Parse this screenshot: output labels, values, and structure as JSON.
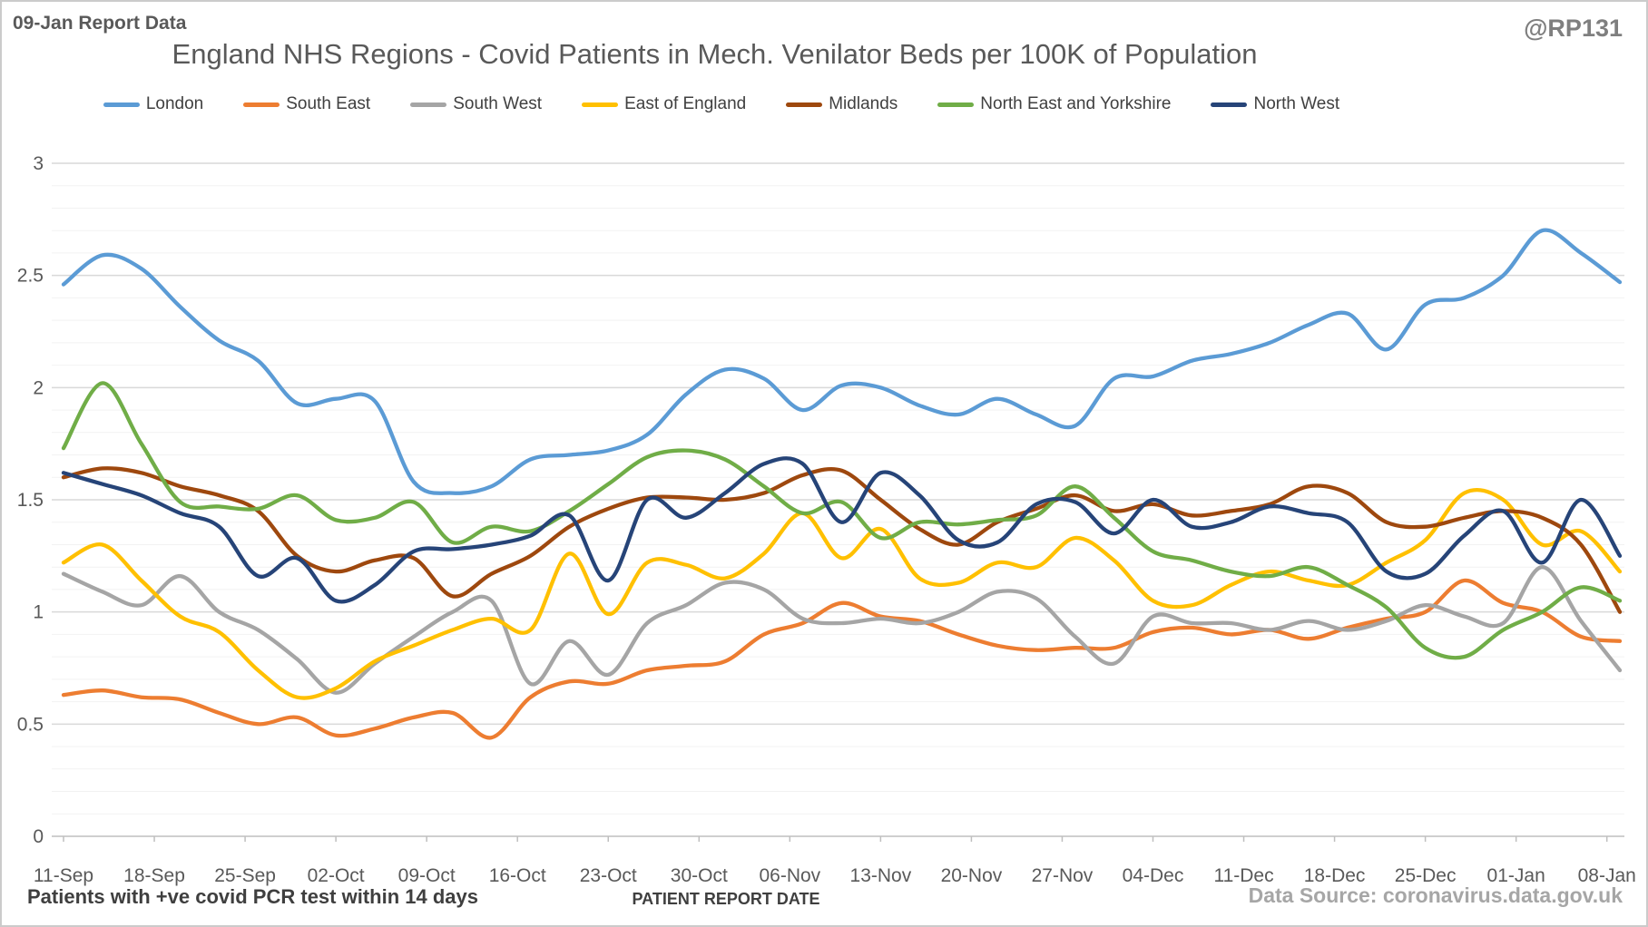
{
  "header": {
    "report_label": "09-Jan Report Data",
    "handle": "@RP131",
    "title": "England NHS Regions - Covid Patients in Mech. Venilator Beds per 100K of Population"
  },
  "footer": {
    "footnote_left": "Patients with +ve covid PCR test within 14 days",
    "x_axis_title": "PATIENT REPORT DATE",
    "data_source": "Data Source: coronavirus.data.gov.uk"
  },
  "colors": {
    "axis_text": "#595959",
    "major_gridline": "#d9d9d9",
    "minor_gridline": "#f2f2f2",
    "axis_line": "#bfbfbf"
  },
  "chart_data": {
    "type": "line",
    "title": "England NHS Regions - Covid Patients in Mech. Venilator Beds per 100K of Population",
    "xlabel": "PATIENT REPORT DATE",
    "ylabel": "",
    "ylim": [
      0,
      3
    ],
    "y_major_step": 0.5,
    "y_minor_step": 0.1,
    "y_tick_labels": [
      "0",
      "0.5",
      "1",
      "1.5",
      "2",
      "2.5",
      "3"
    ],
    "grid": "on",
    "legend_position": "top",
    "x_tick_labels": [
      "11-Sep",
      "18-Sep",
      "25-Sep",
      "02-Oct",
      "09-Oct",
      "16-Oct",
      "23-Oct",
      "30-Oct",
      "06-Nov",
      "13-Nov",
      "20-Nov",
      "27-Nov",
      "04-Dec",
      "11-Dec",
      "18-Dec",
      "25-Dec",
      "01-Jan",
      "08-Jan"
    ],
    "x": [
      "11-Sep",
      "14-Sep",
      "17-Sep",
      "20-Sep",
      "23-Sep",
      "26-Sep",
      "29-Sep",
      "02-Oct",
      "05-Oct",
      "08-Oct",
      "11-Oct",
      "14-Oct",
      "17-Oct",
      "20-Oct",
      "23-Oct",
      "26-Oct",
      "29-Oct",
      "01-Nov",
      "04-Nov",
      "07-Nov",
      "10-Nov",
      "13-Nov",
      "16-Nov",
      "19-Nov",
      "22-Nov",
      "25-Nov",
      "28-Nov",
      "01-Dec",
      "04-Dec",
      "07-Dec",
      "10-Dec",
      "13-Dec",
      "16-Dec",
      "19-Dec",
      "22-Dec",
      "25-Dec",
      "28-Dec",
      "31-Dec",
      "03-Jan",
      "06-Jan",
      "09-Jan"
    ],
    "series": [
      {
        "name": "London",
        "color": "#5b9bd5",
        "values": [
          2.46,
          2.59,
          2.53,
          2.36,
          2.21,
          2.12,
          1.93,
          1.95,
          1.94,
          1.58,
          1.53,
          1.56,
          1.68,
          1.7,
          1.72,
          1.79,
          1.97,
          2.08,
          2.04,
          1.9,
          2.01,
          2.0,
          1.92,
          1.88,
          1.95,
          1.88,
          1.83,
          2.04,
          2.05,
          2.12,
          2.15,
          2.2,
          2.28,
          2.33,
          2.17,
          2.37,
          2.4,
          2.5,
          2.7,
          2.6,
          2.47
        ]
      },
      {
        "name": "South East",
        "color": "#ed7d31",
        "values": [
          0.63,
          0.65,
          0.62,
          0.61,
          0.55,
          0.5,
          0.53,
          0.45,
          0.48,
          0.53,
          0.55,
          0.44,
          0.62,
          0.69,
          0.68,
          0.74,
          0.76,
          0.78,
          0.9,
          0.95,
          1.04,
          0.98,
          0.96,
          0.9,
          0.85,
          0.83,
          0.84,
          0.84,
          0.91,
          0.93,
          0.9,
          0.92,
          0.88,
          0.93,
          0.97,
          1.0,
          1.14,
          1.04,
          1.0,
          0.89,
          0.87
        ]
      },
      {
        "name": "South West",
        "color": "#a5a5a5",
        "values": [
          1.17,
          1.09,
          1.03,
          1.16,
          1.0,
          0.92,
          0.79,
          0.64,
          0.77,
          0.89,
          1.0,
          1.05,
          0.68,
          0.87,
          0.72,
          0.95,
          1.03,
          1.13,
          1.1,
          0.97,
          0.95,
          0.97,
          0.95,
          1.0,
          1.09,
          1.06,
          0.89,
          0.77,
          0.98,
          0.95,
          0.95,
          0.92,
          0.96,
          0.92,
          0.96,
          1.03,
          0.98,
          0.95,
          1.2,
          0.96,
          0.74
        ]
      },
      {
        "name": "East of England",
        "color": "#ffc000",
        "values": [
          1.22,
          1.3,
          1.14,
          0.98,
          0.91,
          0.74,
          0.62,
          0.66,
          0.78,
          0.85,
          0.92,
          0.97,
          0.92,
          1.26,
          0.99,
          1.22,
          1.21,
          1.15,
          1.26,
          1.44,
          1.24,
          1.37,
          1.15,
          1.13,
          1.22,
          1.2,
          1.33,
          1.23,
          1.05,
          1.03,
          1.12,
          1.18,
          1.14,
          1.12,
          1.22,
          1.32,
          1.53,
          1.5,
          1.3,
          1.36,
          1.18
        ]
      },
      {
        "name": "Midlands",
        "color": "#9e480e",
        "values": [
          1.6,
          1.64,
          1.62,
          1.56,
          1.52,
          1.45,
          1.25,
          1.18,
          1.23,
          1.24,
          1.07,
          1.17,
          1.25,
          1.38,
          1.46,
          1.51,
          1.51,
          1.5,
          1.53,
          1.61,
          1.63,
          1.5,
          1.37,
          1.3,
          1.4,
          1.46,
          1.52,
          1.45,
          1.48,
          1.43,
          1.45,
          1.48,
          1.56,
          1.53,
          1.4,
          1.38,
          1.42,
          1.45,
          1.42,
          1.3,
          1.0
        ]
      },
      {
        "name": "North East and Yorkshire",
        "color": "#70ad47",
        "values": [
          1.73,
          2.02,
          1.75,
          1.49,
          1.47,
          1.46,
          1.52,
          1.41,
          1.42,
          1.49,
          1.31,
          1.38,
          1.36,
          1.45,
          1.57,
          1.69,
          1.72,
          1.68,
          1.56,
          1.44,
          1.49,
          1.33,
          1.4,
          1.39,
          1.41,
          1.43,
          1.56,
          1.42,
          1.27,
          1.23,
          1.18,
          1.16,
          1.2,
          1.12,
          1.02,
          0.84,
          0.8,
          0.92,
          1.0,
          1.11,
          1.05
        ]
      },
      {
        "name": "North West",
        "color": "#264478",
        "values": [
          1.62,
          1.57,
          1.52,
          1.44,
          1.38,
          1.16,
          1.24,
          1.05,
          1.12,
          1.27,
          1.28,
          1.3,
          1.34,
          1.43,
          1.14,
          1.5,
          1.42,
          1.53,
          1.66,
          1.66,
          1.4,
          1.62,
          1.52,
          1.32,
          1.31,
          1.48,
          1.49,
          1.35,
          1.5,
          1.38,
          1.4,
          1.47,
          1.44,
          1.4,
          1.18,
          1.17,
          1.34,
          1.45,
          1.22,
          1.5,
          1.25
        ]
      }
    ]
  }
}
